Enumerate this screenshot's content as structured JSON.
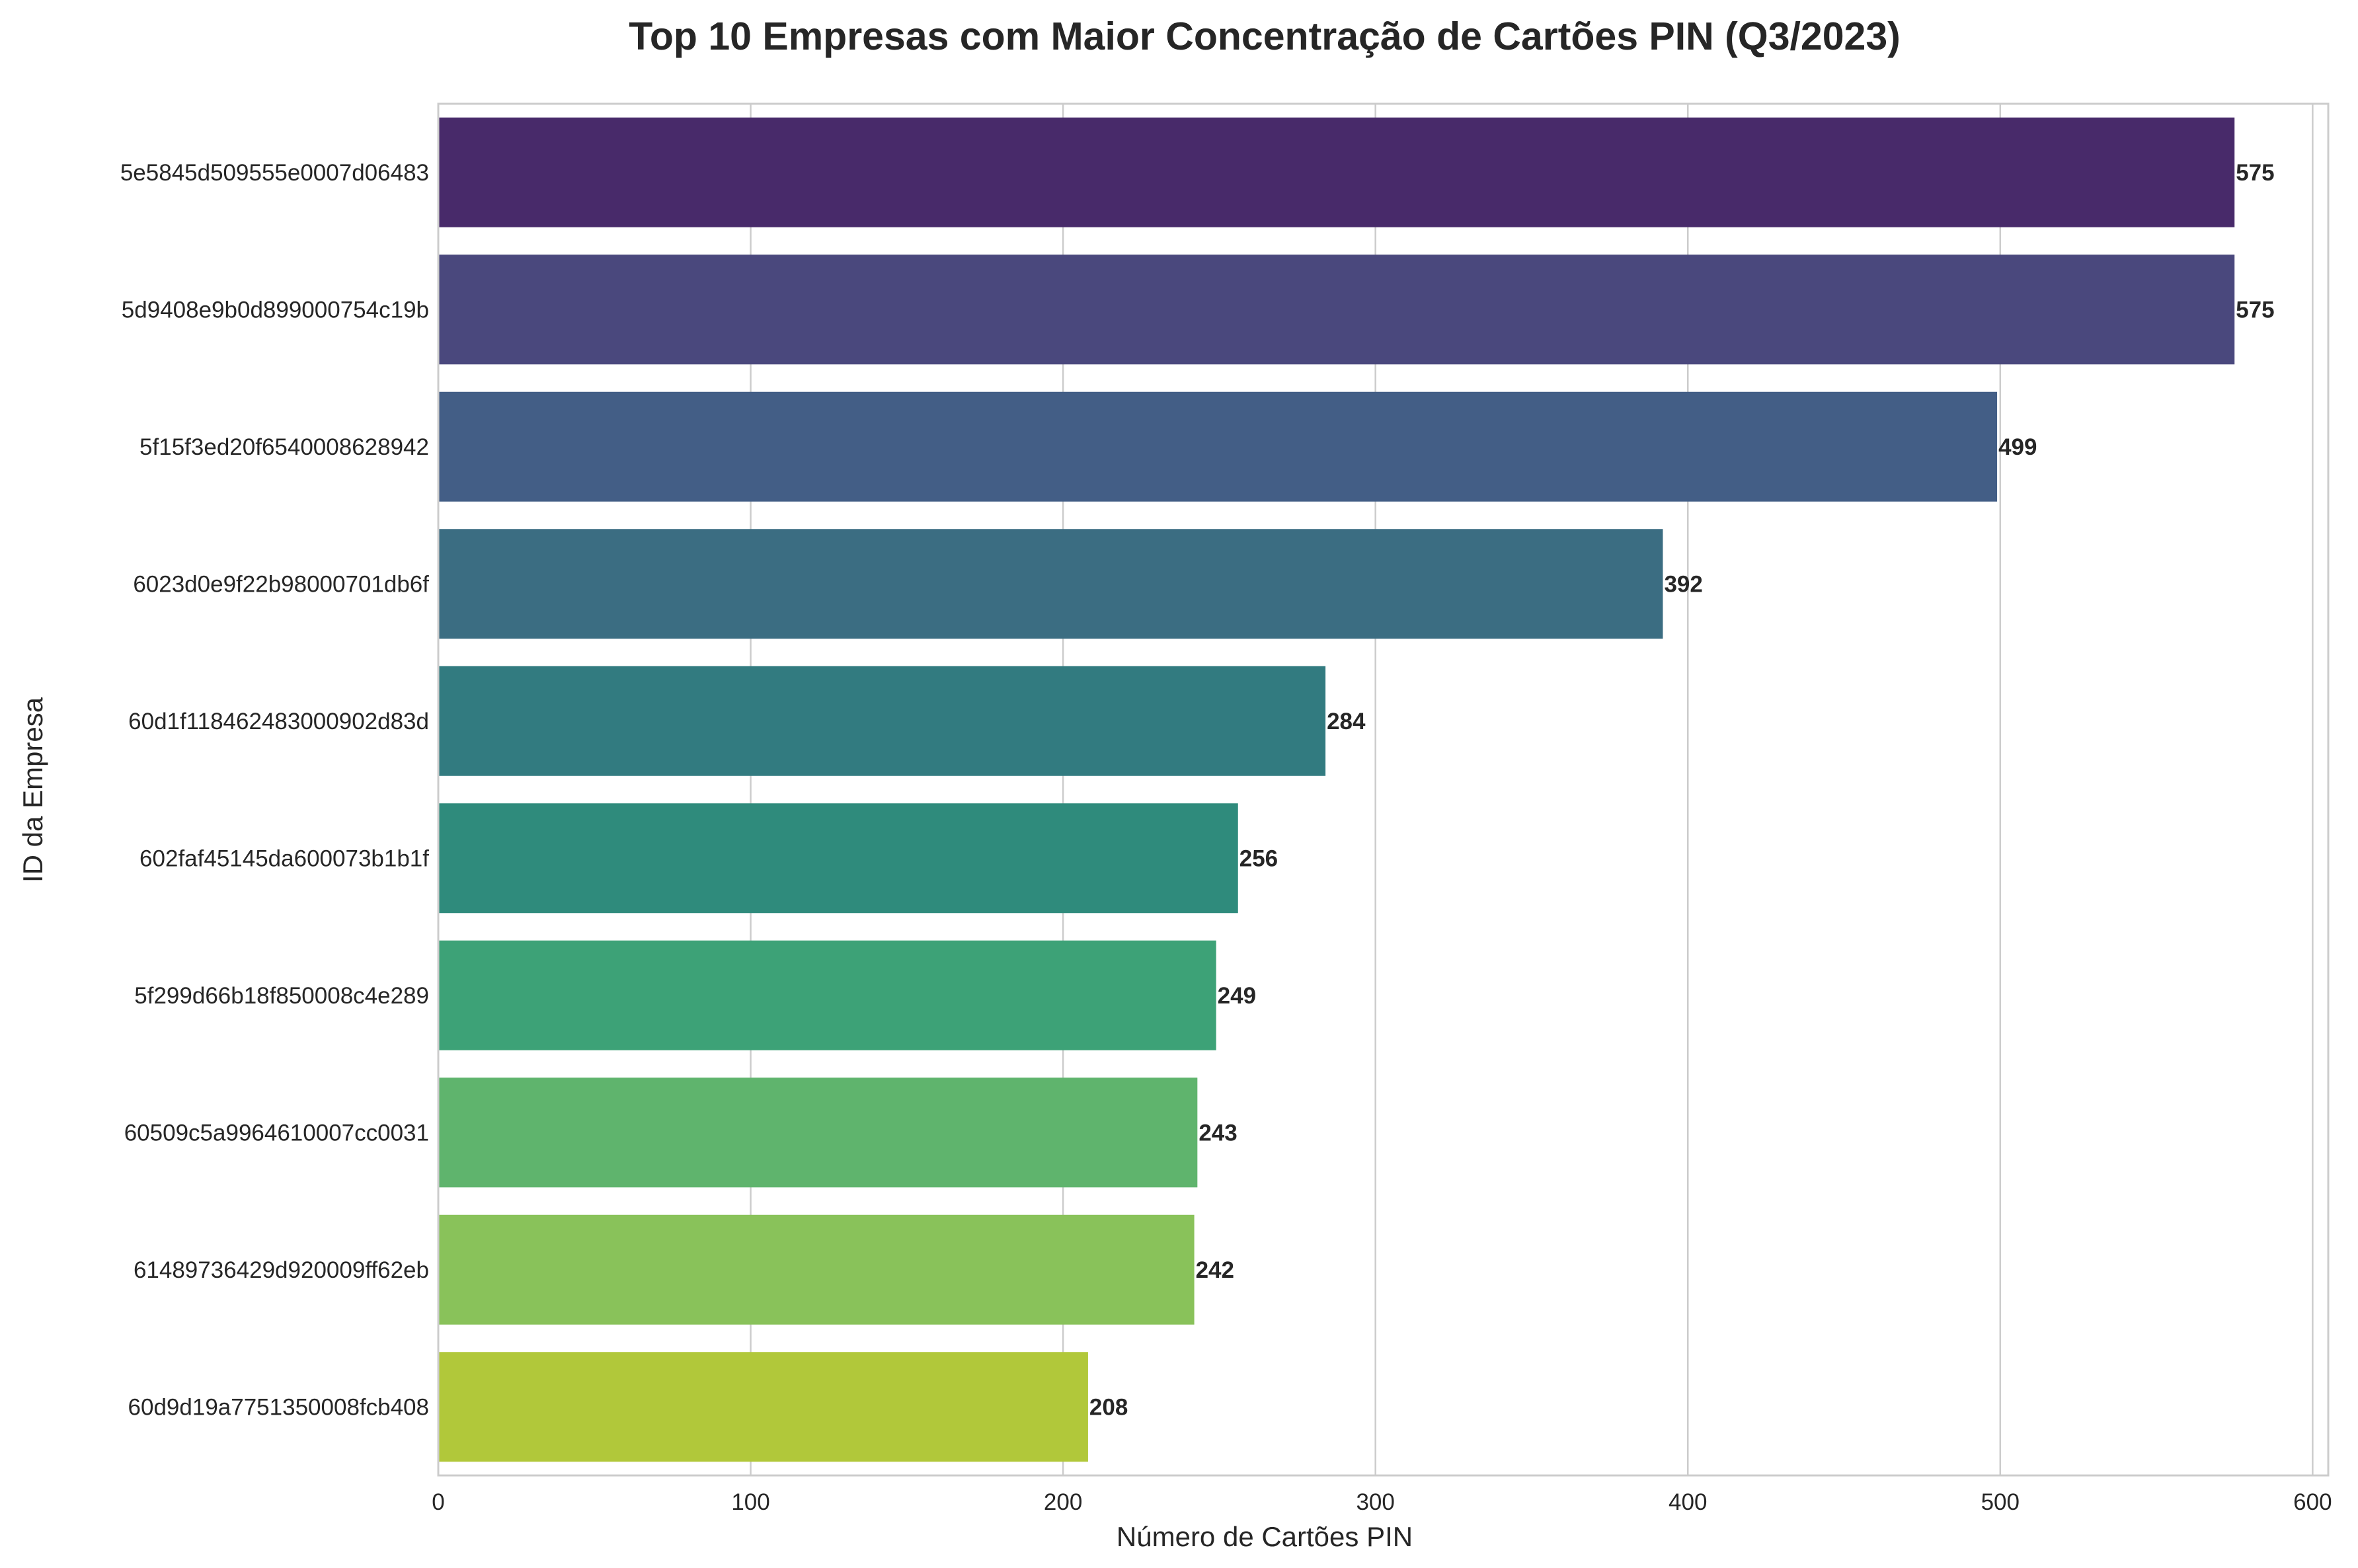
{
  "chart_data": {
    "type": "bar",
    "orientation": "horizontal",
    "title": "Top 10 Empresas com Maior Concentração de Cartões PIN (Q3/2023)",
    "xlabel": "Número de Cartões PIN",
    "ylabel": "ID da Empresa",
    "xlim": [
      0,
      605
    ],
    "xticks": [
      0,
      100,
      200,
      300,
      400,
      500,
      600
    ],
    "grid": true,
    "categories": [
      "5e5845d509555e0007d06483",
      "5d9408e9b0d899000754c19b",
      "5f15f3ed20f6540008628942",
      "6023d0e9f22b98000701db6f",
      "60d1f118462483000902d83d",
      "602faf45145da600073b1b1f",
      "5f299d66b18f850008c4e289",
      "60509c5a9964610007cc0031",
      "61489736429d920009ff62eb",
      "60d9d19a7751350008fcb408"
    ],
    "values": [
      575,
      575,
      499,
      392,
      284,
      256,
      249,
      243,
      242,
      208
    ],
    "colors": [
      "#482a6a",
      "#4a487d",
      "#435e86",
      "#3b6d82",
      "#327b80",
      "#2f8b7c",
      "#3da277",
      "#5fb46d",
      "#89c25a",
      "#b1c83a"
    ]
  }
}
